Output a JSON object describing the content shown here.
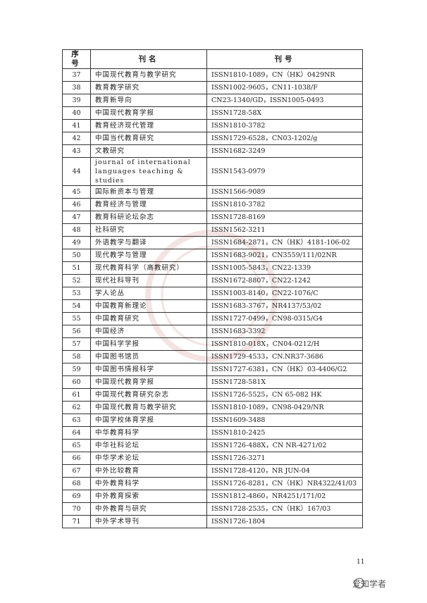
{
  "table": {
    "header": [
      "序号",
      "刊名",
      "刊号"
    ],
    "rows": [
      [
        37,
        "中国现代教育与教学研究",
        "ISSN1810-1089，CN（HK）0429NR"
      ],
      [
        38,
        "教育教学研究",
        "ISSN1002-9605，CN11-1038/F"
      ],
      [
        39,
        "教育新导向",
        "CN23-1340/GD，ISSN1005-0493"
      ],
      [
        40,
        "中国现代教育学报",
        "ISSN1728-58X"
      ],
      [
        41,
        "教育经济现代管理",
        "ISSN1810-3782"
      ],
      [
        42,
        "中国当代教育研究",
        "ISSN1729-6528，CN03-1202/g"
      ],
      [
        43,
        "文教研究",
        "ISSN1682-3249"
      ],
      [
        44,
        "journal of international languages teaching & studies",
        "ISSN1543-0979"
      ],
      [
        45,
        "国际新资本与管理",
        "ISSN1566-9089"
      ],
      [
        46,
        "教育经济与管理",
        "ISSN1810-3782"
      ],
      [
        47,
        "教育科研论坛杂志",
        "ISSN1728-8169"
      ],
      [
        48,
        "社科研究",
        "ISSN1562-3211"
      ],
      [
        49,
        "外语教学与翻译",
        "ISSN1684-2871，CN（HK）4181-106-02"
      ],
      [
        50,
        "现代教学与管理",
        "ISSN1683-9021，CN3559/111/02NR"
      ],
      [
        51,
        "现代教育科学（高教研究）",
        "ISSN1005-5843，CN22-1339"
      ],
      [
        52,
        "现代社科导刊",
        "ISSN1672-8807，CN22-1242"
      ],
      [
        53,
        "学人论丛",
        "ISSN1003-8140，CN22-1076/C"
      ],
      [
        54,
        "中国教育新理论",
        "ISSN1683-3767，NR4137/53/02"
      ],
      [
        55,
        "中国教育研究",
        "ISSN1727-0499，CN98-0315/G4"
      ],
      [
        56,
        "中国经济",
        "ISSN1683-3392"
      ],
      [
        57,
        "中国科学学报",
        "ISSN1810-018X，CN04-0212/H"
      ],
      [
        58,
        "中国图书馆员",
        "ISSN1729-4533，CN.NR37-3686"
      ],
      [
        59,
        "中国图书情报科学",
        "ISSN1727-6381，CN（HK）03-4406/G2"
      ],
      [
        60,
        "中国现代教育学报",
        "ISSN1728-581X"
      ],
      [
        61,
        "中国现代教育研究杂志",
        "ISSN1726-5525，CN 65-082 HK"
      ],
      [
        62,
        "中国现代教育与教学研究",
        "ISSN1810-1089，CN98-0429/NR"
      ],
      [
        63,
        "中国学校体育学报",
        "ISSN1609-3488"
      ],
      [
        64,
        "中华教育科学",
        "ISSN1810-2425"
      ],
      [
        65,
        "中华社科论坛",
        "ISSN1726-488X，CN NR-4271/02"
      ],
      [
        66,
        "中华学术论坛",
        "ISSN1726-3271"
      ],
      [
        67,
        "中外比较教育",
        "ISSN1728-4120，NR JUN-04"
      ],
      [
        68,
        "中外教育科学",
        "ISSN1726-8281，CN（HK）NR4322/41/03"
      ],
      [
        69,
        "中外教育探索",
        "ISSN1812-4860，NR4251/171/02"
      ],
      [
        70,
        "中外教育与研究",
        "ISSN1728-2535，CN（HK）167/03"
      ],
      [
        71,
        "中外学术导刊",
        "ISSN1726-1804"
      ]
    ]
  },
  "page_number": 11,
  "watermark": "爱知学者"
}
